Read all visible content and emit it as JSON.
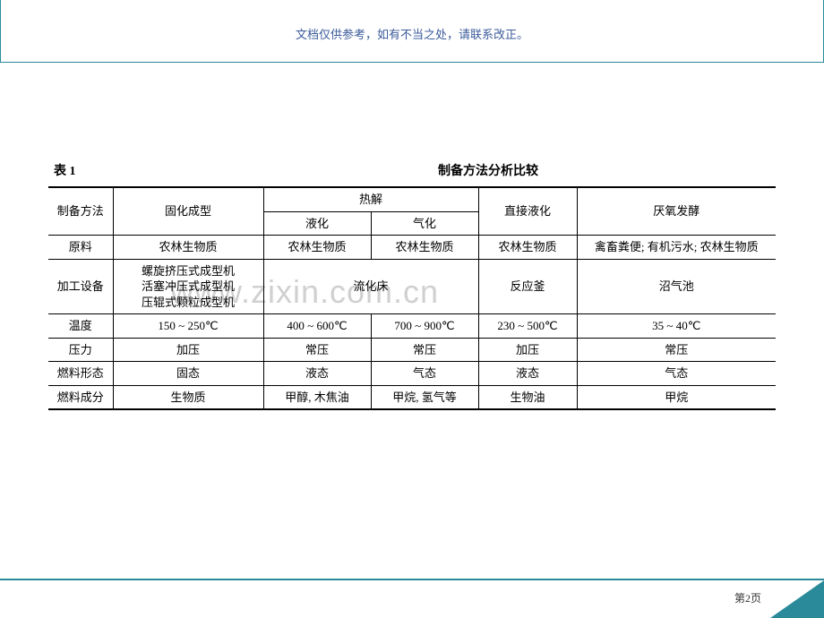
{
  "banner": {
    "text": "文档仅供参考，如有不当之处，请联系改正。"
  },
  "caption": {
    "left": "表 1",
    "title": "制备方法分析比较"
  },
  "watermark": "www.zixin.com.cn",
  "table": {
    "head": {
      "c0": "制备方法",
      "c1": "固化成型",
      "c2_group": "热解",
      "c2a": "液化",
      "c2b": "气化",
      "c3": "直接液化",
      "c4": "厌氧发酵"
    },
    "rows": [
      {
        "label": "原料",
        "c1": "农林生物质",
        "c2": "农林生物质",
        "c3": "农林生物质",
        "c4": "农林生物质",
        "c5": "禽畜粪便; 有机污水; 农林生物质"
      },
      {
        "label": "加工设备",
        "c1": "螺旋挤压式成型机\n活塞冲压式成型机\n压辊式颗粒成型机",
        "c2_span": "流化床",
        "c4": "反应釜",
        "c5": "沼气池"
      },
      {
        "label": "温度",
        "c1": "150 ~ 250℃",
        "c2": "400 ~ 600℃",
        "c3": "700 ~ 900℃",
        "c4": "230 ~ 500℃",
        "c5": "35 ~ 40℃"
      },
      {
        "label": "压力",
        "c1": "加压",
        "c2": "常压",
        "c3": "常压",
        "c4": "加压",
        "c5": "常压"
      },
      {
        "label": "燃料形态",
        "c1": "固态",
        "c2": "液态",
        "c3": "气态",
        "c4": "液态",
        "c5": "气态"
      },
      {
        "label": "燃料成分",
        "c1": "生物质",
        "c2": "甲醇, 木焦油",
        "c3": "甲烷, 氢气等",
        "c4": "生物油",
        "c5": "甲烷"
      }
    ]
  },
  "footer": {
    "page": "第2页"
  },
  "colors": {
    "accent": "#2a8a9a",
    "banner_text": "#3b5b9a",
    "text": "#000000"
  }
}
